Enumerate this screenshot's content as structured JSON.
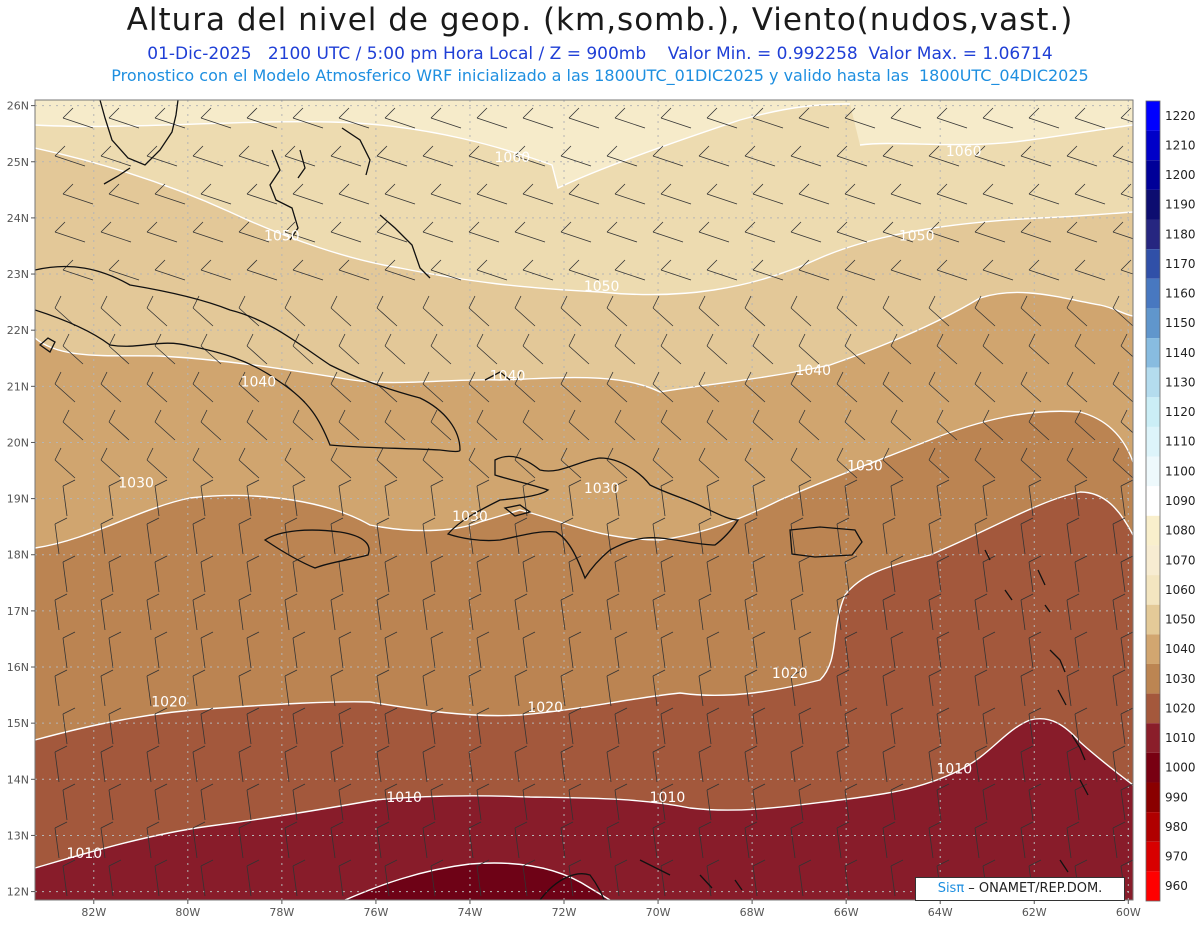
{
  "title": "Altura del nivel de geop. (km,somb.), Viento(nudos,vast.)",
  "subtitle_line1": "01-Dic-2025   2100 UTC / 5:00 pm Hora Local / Z = 900mb    Valor Min. = 0.992258  Valor Max. = 1.06714",
  "subtitle_line2": "Pronostico con el Modelo Atmosferico WRF inicializado a las 1800UTC_01DIC2025 y valido hasta las  1800UTC_04DIC2025",
  "map": {
    "lat_labels": [
      "26N",
      "25N",
      "24N",
      "23N",
      "22N",
      "21N",
      "20N",
      "19N",
      "18N",
      "17N",
      "16N",
      "15N",
      "14N",
      "13N",
      "12N"
    ],
    "lon_labels": [
      "82W",
      "80W",
      "78W",
      "76W",
      "74W",
      "72W",
      "70W",
      "68W",
      "66W",
      "64W",
      "62W",
      "60W"
    ],
    "contour_labels": [
      {
        "text": "1060",
        "lon": -73.1,
        "lat": 25.0
      },
      {
        "text": "1060",
        "lon": -63.5,
        "lat": 25.1
      },
      {
        "text": "1050",
        "lon": -78.0,
        "lat": 23.6
      },
      {
        "text": "1050",
        "lon": -71.2,
        "lat": 22.7
      },
      {
        "text": "1050",
        "lon": -64.5,
        "lat": 23.6
      },
      {
        "text": "1040",
        "lon": -78.5,
        "lat": 21.0
      },
      {
        "text": "1040",
        "lon": -73.2,
        "lat": 21.1
      },
      {
        "text": "1040",
        "lon": -66.7,
        "lat": 21.2
      },
      {
        "text": "1030",
        "lon": -81.1,
        "lat": 19.2
      },
      {
        "text": "1030",
        "lon": -74.0,
        "lat": 18.6
      },
      {
        "text": "1030",
        "lon": -71.2,
        "lat": 19.1
      },
      {
        "text": "1030",
        "lon": -65.6,
        "lat": 19.5
      },
      {
        "text": "1020",
        "lon": -80.4,
        "lat": 15.3
      },
      {
        "text": "1020",
        "lon": -72.4,
        "lat": 15.2
      },
      {
        "text": "1020",
        "lon": -67.2,
        "lat": 15.8
      },
      {
        "text": "1010",
        "lon": -75.4,
        "lat": 13.6
      },
      {
        "text": "1010",
        "lon": -69.8,
        "lat": 13.6
      },
      {
        "text": "1010",
        "lon": -82.2,
        "lat": 12.6
      },
      {
        "text": "1010",
        "lon": -63.7,
        "lat": 14.1
      }
    ]
  },
  "colorbar": {
    "labels": [
      "1220",
      "1210",
      "1200",
      "1190",
      "1180",
      "1170",
      "1160",
      "1150",
      "1140",
      "1130",
      "1120",
      "1110",
      "1100",
      "1090",
      "1080",
      "1070",
      "1060",
      "1050",
      "1040",
      "1030",
      "1020",
      "1010",
      "1000",
      "990",
      "980",
      "970",
      "960"
    ],
    "colors": [
      "#0000ff",
      "#0000c8",
      "#000098",
      "#0d0d70",
      "#262680",
      "#3050a8",
      "#4878c0",
      "#6096cc",
      "#88bce0",
      "#b4dcee",
      "#cbeef6",
      "#ddf4fa",
      "#eef9fc",
      "#ffffff",
      "#f9efcc",
      "#f7ecd2",
      "#f3e5c0",
      "#e4ca98",
      "#d2a670",
      "#bc8552",
      "#a4583c",
      "#8a1e2a",
      "#780012",
      "#8a0000",
      "#b00000",
      "#d80000",
      "#ff0000"
    ]
  },
  "credit": {
    "brand": "Sisπ",
    "text": " – ONAMET/REP.DOM."
  }
}
